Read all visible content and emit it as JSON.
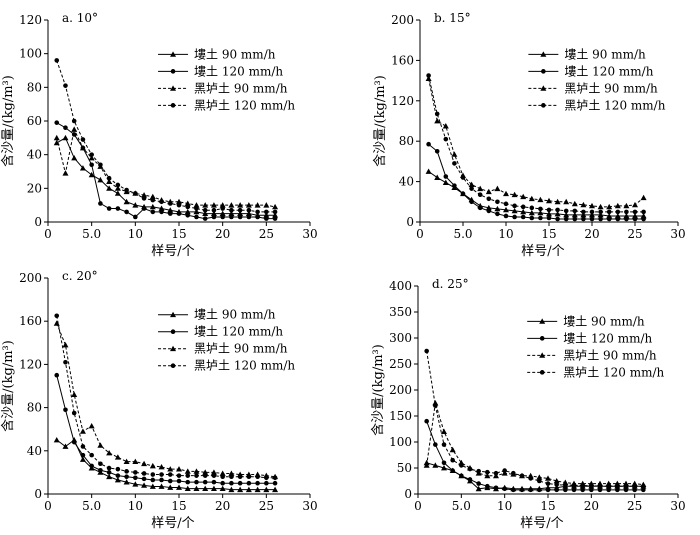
{
  "chart_data": [
    {
      "type": "line",
      "panel_label": "a. 10°",
      "xlabel": "样号/个",
      "ylabel": "含沙量/(kg/m³)",
      "xlim": [
        0,
        30
      ],
      "ylim": [
        0,
        120
      ],
      "xticks": [
        0,
        5.0,
        10,
        15,
        20,
        25,
        30
      ],
      "xtick_labels": [
        "0",
        "5.0",
        "10",
        "15",
        "20",
        "25",
        "30"
      ],
      "yticks": [
        0,
        20,
        40,
        60,
        80,
        100,
        120
      ],
      "ytick_labels": [
        "0",
        "20",
        "40",
        "60",
        "80",
        "100",
        "120"
      ],
      "grid": false,
      "legend_position": "top-right",
      "x": [
        1,
        2,
        3,
        4,
        5,
        6,
        7,
        8,
        9,
        10,
        11,
        12,
        13,
        14,
        15,
        16,
        17,
        18,
        19,
        20,
        21,
        22,
        23,
        24,
        25,
        26
      ],
      "series": [
        {
          "name": "塿土  90 mm/h",
          "line": "solid",
          "marker": "triangle",
          "values": [
            47,
            50,
            38,
            32,
            28,
            25,
            20,
            17,
            12,
            10,
            9,
            9,
            8,
            7,
            6,
            6,
            6,
            5,
            5,
            5,
            5,
            5,
            5,
            4,
            4,
            4
          ]
        },
        {
          "name": "塿土  120 mm/h",
          "line": "solid",
          "marker": "circle",
          "values": [
            59,
            56,
            52,
            44,
            34,
            11,
            8,
            8,
            6,
            3,
            8,
            6,
            6,
            5,
            5,
            4,
            3,
            2,
            3,
            3,
            3,
            3,
            3,
            3,
            2,
            2
          ]
        },
        {
          "name": "黑垆土  90 mm/h",
          "line": "dashed",
          "marker": "triangle",
          "values": [
            50,
            29,
            55,
            44,
            38,
            33,
            24,
            20,
            18,
            17,
            16,
            15,
            13,
            12,
            12,
            11,
            10,
            10,
            10,
            10,
            10,
            10,
            10,
            10,
            10,
            9
          ]
        },
        {
          "name": "黑垆土  120 mm/h",
          "line": "dashed",
          "marker": "circle",
          "values": [
            96,
            81,
            60,
            49,
            40,
            34,
            26,
            22,
            19,
            17,
            14,
            13,
            12,
            11,
            10,
            9,
            8,
            7,
            7,
            8,
            7,
            7,
            7,
            6,
            6,
            6
          ]
        }
      ]
    },
    {
      "type": "line",
      "panel_label": "b. 15°",
      "xlabel": "样号/个",
      "ylabel": "含沙量/(kg/m³)",
      "xlim": [
        0,
        30
      ],
      "ylim": [
        0,
        200
      ],
      "xticks": [
        0,
        5.0,
        10,
        15,
        20,
        25,
        30
      ],
      "xtick_labels": [
        "0",
        "5.0",
        "10",
        "15",
        "20",
        "25",
        "30"
      ],
      "yticks": [
        0,
        40,
        80,
        120,
        160,
        200
      ],
      "ytick_labels": [
        "0",
        "40",
        "80",
        "120",
        "160",
        "200"
      ],
      "grid": false,
      "legend_position": "top-right",
      "x": [
        1,
        2,
        3,
        4,
        5,
        6,
        7,
        8,
        9,
        10,
        11,
        12,
        13,
        14,
        15,
        16,
        17,
        18,
        19,
        20,
        21,
        22,
        23,
        24,
        25,
        26
      ],
      "series": [
        {
          "name": "塿土  90 mm/h",
          "line": "solid",
          "marker": "triangle",
          "values": [
            50,
            44,
            39,
            34,
            28,
            22,
            16,
            14,
            13,
            12,
            11,
            10,
            9,
            9,
            8,
            8,
            7,
            7,
            7,
            7,
            7,
            6,
            6,
            6,
            6,
            6
          ]
        },
        {
          "name": "塿土  120 mm/h",
          "line": "solid",
          "marker": "circle",
          "values": [
            77,
            70,
            45,
            36,
            28,
            20,
            14,
            11,
            8,
            6,
            5,
            5,
            4,
            4,
            4,
            3,
            3,
            3,
            3,
            3,
            3,
            3,
            3,
            3,
            3,
            3
          ]
        },
        {
          "name": "黑垆土  90 mm/h",
          "line": "dashed",
          "marker": "triangle",
          "values": [
            142,
            100,
            95,
            67,
            46,
            37,
            33,
            30,
            33,
            28,
            27,
            25,
            23,
            22,
            21,
            20,
            20,
            18,
            17,
            16,
            15,
            15,
            16,
            16,
            17,
            24
          ]
        },
        {
          "name": "黑垆土  120 mm/h",
          "line": "dashed",
          "marker": "circle",
          "values": [
            145,
            107,
            82,
            58,
            44,
            33,
            27,
            23,
            20,
            18,
            16,
            15,
            14,
            13,
            12,
            12,
            11,
            11,
            10,
            10,
            10,
            10,
            10,
            10,
            10,
            10
          ]
        }
      ]
    },
    {
      "type": "line",
      "panel_label": "c. 20°",
      "xlabel": "样号/个",
      "ylabel": "含沙量/(kg/m³)",
      "xlim": [
        0,
        30
      ],
      "ylim": [
        0,
        200
      ],
      "xticks": [
        0,
        5.0,
        10,
        15,
        20,
        25,
        30
      ],
      "xtick_labels": [
        "0",
        "5.0",
        "10",
        "15",
        "20",
        "25",
        "30"
      ],
      "yticks": [
        0,
        40,
        80,
        120,
        160,
        200
      ],
      "ytick_labels": [
        "0",
        "40",
        "80",
        "120",
        "160",
        "200"
      ],
      "grid": false,
      "legend_position": "top-right",
      "x": [
        1,
        2,
        3,
        4,
        5,
        6,
        7,
        8,
        9,
        10,
        11,
        12,
        13,
        14,
        15,
        16,
        17,
        18,
        19,
        20,
        21,
        22,
        23,
        24,
        25,
        26
      ],
      "series": [
        {
          "name": "塿土  90 mm/h",
          "line": "solid",
          "marker": "triangle",
          "values": [
            50,
            44,
            50,
            32,
            24,
            20,
            16,
            13,
            11,
            9,
            8,
            7,
            7,
            6,
            6,
            5,
            5,
            5,
            5,
            5,
            4,
            4,
            4,
            4,
            4,
            4
          ]
        },
        {
          "name": "塿土  120 mm/h",
          "line": "solid",
          "marker": "circle",
          "values": [
            110,
            78,
            48,
            36,
            26,
            22,
            20,
            17,
            16,
            15,
            14,
            13,
            13,
            12,
            12,
            11,
            11,
            11,
            11,
            10,
            10,
            10,
            10,
            10,
            10,
            10
          ]
        },
        {
          "name": "黑垆土  90 mm/h",
          "line": "dashed",
          "marker": "triangle",
          "values": [
            158,
            138,
            92,
            58,
            63,
            45,
            38,
            34,
            30,
            30,
            28,
            26,
            25,
            23,
            23,
            21,
            21,
            20,
            20,
            19,
            19,
            18,
            18,
            18,
            17,
            16
          ]
        },
        {
          "name": "黑垆土  120 mm/h",
          "line": "dashed",
          "marker": "circle",
          "values": [
            165,
            122,
            75,
            44,
            36,
            28,
            24,
            23,
            21,
            20,
            19,
            18,
            18,
            18,
            17,
            17,
            17,
            17,
            17,
            16,
            16,
            16,
            16,
            16,
            15,
            15
          ]
        }
      ]
    },
    {
      "type": "line",
      "panel_label": "d. 25°",
      "xlabel": "样号/个",
      "ylabel": "含沙量/(kg/m³)",
      "xlim": [
        0,
        30
      ],
      "ylim": [
        0,
        400
      ],
      "xticks": [
        0,
        5.0,
        10,
        15,
        20,
        25,
        30
      ],
      "xtick_labels": [
        "0",
        "5.0",
        "10",
        "15",
        "20",
        "25",
        "30"
      ],
      "yticks": [
        0,
        50,
        100,
        150,
        200,
        250,
        300,
        350,
        400
      ],
      "ytick_labels": [
        "0",
        "50",
        "100",
        "150",
        "200",
        "250",
        "300",
        "350",
        "400"
      ],
      "grid": false,
      "legend_position": "top-right",
      "x": [
        1,
        2,
        3,
        4,
        5,
        6,
        7,
        8,
        9,
        10,
        11,
        12,
        13,
        14,
        15,
        16,
        17,
        18,
        19,
        20,
        21,
        22,
        23,
        24,
        25,
        26
      ],
      "series": [
        {
          "name": "塿土  90 mm/h",
          "line": "solid",
          "marker": "triangle",
          "values": [
            60,
            55,
            50,
            45,
            35,
            25,
            10,
            12,
            10,
            12,
            10,
            10,
            10,
            10,
            12,
            12,
            15,
            15,
            15,
            15,
            15,
            15,
            15,
            15,
            15,
            15
          ]
        },
        {
          "name": "塿土  120 mm/h",
          "line": "solid",
          "marker": "circle",
          "values": [
            140,
            95,
            60,
            45,
            35,
            28,
            20,
            15,
            12,
            10,
            8,
            8,
            8,
            8,
            8,
            8,
            8,
            8,
            8,
            8,
            8,
            8,
            8,
            8,
            8,
            8
          ]
        },
        {
          "name": "黑垆土  90 mm/h",
          "line": "dashed",
          "marker": "triangle",
          "values": [
            55,
            175,
            120,
            85,
            60,
            50,
            40,
            35,
            35,
            40,
            38,
            35,
            35,
            32,
            30,
            25,
            22,
            20,
            20,
            20,
            20,
            20,
            20,
            20,
            20,
            18
          ]
        },
        {
          "name": "黑垆土  120 mm/h",
          "line": "dashed",
          "marker": "circle",
          "values": [
            275,
            170,
            95,
            65,
            55,
            48,
            44,
            42,
            40,
            45,
            40,
            35,
            30,
            25,
            20,
            18,
            17,
            17,
            16,
            16,
            15,
            15,
            15,
            15,
            15,
            15
          ]
        }
      ]
    }
  ]
}
